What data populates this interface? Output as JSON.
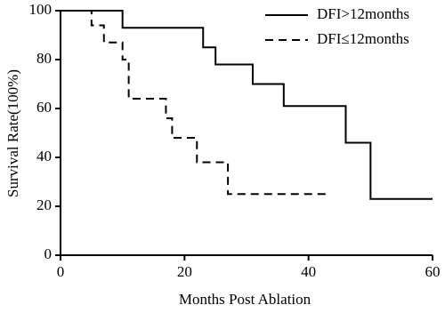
{
  "chart_data": {
    "type": "step",
    "xlabel": "Months Post Ablation",
    "ylabel": "Survival Rate(100%)",
    "xlim": [
      0,
      60
    ],
    "ylim": [
      0,
      100
    ],
    "xticks": [
      0,
      20,
      40,
      60
    ],
    "yticks": [
      0,
      20,
      40,
      60,
      80,
      100
    ],
    "legend": "top-right",
    "series": [
      {
        "name": "DFI>12months",
        "color": "#000000",
        "dash": false,
        "x": [
          0,
          10,
          23,
          25,
          31,
          36,
          46,
          50,
          60
        ],
        "values": [
          100,
          93,
          85,
          78,
          70,
          61,
          46,
          23,
          23
        ]
      },
      {
        "name": "DFI≤12months",
        "color": "#000000",
        "dash": true,
        "x": [
          0,
          5,
          7,
          10,
          11,
          17,
          18,
          22,
          27,
          43
        ],
        "values": [
          100,
          94,
          87,
          80,
          64,
          56,
          48,
          38,
          25,
          25
        ]
      }
    ]
  }
}
